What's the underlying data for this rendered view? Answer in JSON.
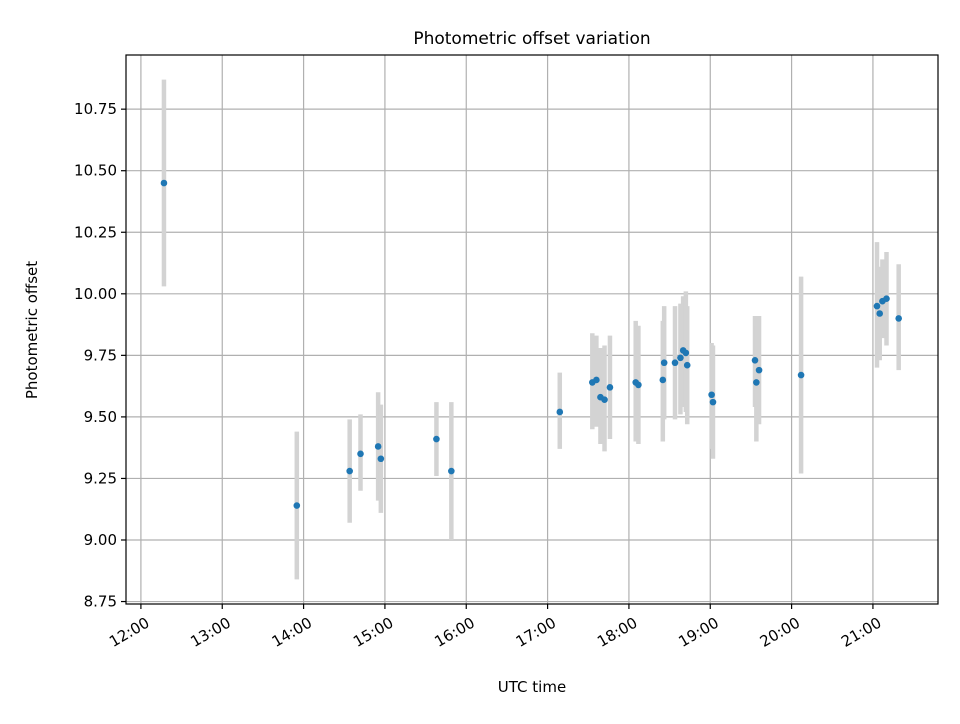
{
  "chart_data": {
    "type": "scatter",
    "title": "Photometric offset variation",
    "xlabel": "UTC time",
    "ylabel": "Photometric offset",
    "xlim": [
      "11:49",
      "21:48"
    ],
    "ylim": [
      8.74,
      10.97
    ],
    "x_ticks": [
      "12:00",
      "13:00",
      "14:00",
      "15:00",
      "16:00",
      "17:00",
      "18:00",
      "19:00",
      "20:00",
      "21:00"
    ],
    "y_ticks": [
      "8.75",
      "9.00",
      "9.25",
      "9.50",
      "9.75",
      "10.00",
      "10.25",
      "10.50",
      "10.75"
    ],
    "grid": true,
    "marker_color": "#1f77b4",
    "errorbar_color": "#d3d3d3",
    "series": [
      {
        "points": [
          {
            "x": "12:17",
            "y": 10.45,
            "yerr_low": 10.03,
            "yerr_high": 10.87
          },
          {
            "x": "13:55",
            "y": 9.14,
            "yerr_low": 8.84,
            "yerr_high": 9.44
          },
          {
            "x": "14:34",
            "y": 9.28,
            "yerr_low": 9.07,
            "yerr_high": 9.49
          },
          {
            "x": "14:42",
            "y": 9.35,
            "yerr_low": 9.2,
            "yerr_high": 9.51
          },
          {
            "x": "14:55",
            "y": 9.38,
            "yerr_low": 9.16,
            "yerr_high": 9.6
          },
          {
            "x": "14:57",
            "y": 9.33,
            "yerr_low": 9.11,
            "yerr_high": 9.55
          },
          {
            "x": "15:38",
            "y": 9.41,
            "yerr_low": 9.26,
            "yerr_high": 9.56
          },
          {
            "x": "15:49",
            "y": 9.28,
            "yerr_low": 9.0,
            "yerr_high": 9.56
          },
          {
            "x": "17:09",
            "y": 9.52,
            "yerr_low": 9.37,
            "yerr_high": 9.68
          },
          {
            "x": "17:33",
            "y": 9.64,
            "yerr_low": 9.45,
            "yerr_high": 9.84
          },
          {
            "x": "17:36",
            "y": 9.65,
            "yerr_low": 9.46,
            "yerr_high": 9.83
          },
          {
            "x": "17:39",
            "y": 9.58,
            "yerr_low": 9.39,
            "yerr_high": 9.78
          },
          {
            "x": "17:42",
            "y": 9.57,
            "yerr_low": 9.36,
            "yerr_high": 9.79
          },
          {
            "x": "17:46",
            "y": 9.62,
            "yerr_low": 9.41,
            "yerr_high": 9.83
          },
          {
            "x": "18:05",
            "y": 9.64,
            "yerr_low": 9.4,
            "yerr_high": 9.89
          },
          {
            "x": "18:07",
            "y": 9.63,
            "yerr_low": 9.39,
            "yerr_high": 9.87
          },
          {
            "x": "18:25",
            "y": 9.65,
            "yerr_low": 9.4,
            "yerr_high": 9.89
          },
          {
            "x": "18:26",
            "y": 9.72,
            "yerr_low": 9.49,
            "yerr_high": 9.95
          },
          {
            "x": "18:34",
            "y": 9.72,
            "yerr_low": 9.49,
            "yerr_high": 9.95
          },
          {
            "x": "18:38",
            "y": 9.74,
            "yerr_low": 9.51,
            "yerr_high": 9.96
          },
          {
            "x": "18:40",
            "y": 9.77,
            "yerr_low": 9.54,
            "yerr_high": 9.99
          },
          {
            "x": "18:42",
            "y": 9.76,
            "yerr_low": 9.52,
            "yerr_high": 10.01
          },
          {
            "x": "18:43",
            "y": 9.71,
            "yerr_low": 9.47,
            "yerr_high": 9.95
          },
          {
            "x": "19:01",
            "y": 9.59,
            "yerr_low": 9.37,
            "yerr_high": 9.8
          },
          {
            "x": "19:02",
            "y": 9.56,
            "yerr_low": 9.33,
            "yerr_high": 9.79
          },
          {
            "x": "19:33",
            "y": 9.73,
            "yerr_low": 9.54,
            "yerr_high": 9.91
          },
          {
            "x": "19:34",
            "y": 9.64,
            "yerr_low": 9.4,
            "yerr_high": 9.87
          },
          {
            "x": "19:36",
            "y": 9.69,
            "yerr_low": 9.47,
            "yerr_high": 9.91
          },
          {
            "x": "20:07",
            "y": 9.67,
            "yerr_low": 9.27,
            "yerr_high": 10.07
          },
          {
            "x": "21:03",
            "y": 9.95,
            "yerr_low": 9.7,
            "yerr_high": 10.21
          },
          {
            "x": "21:05",
            "y": 9.92,
            "yerr_low": 9.73,
            "yerr_high": 10.11
          },
          {
            "x": "21:07",
            "y": 9.97,
            "yerr_low": 9.82,
            "yerr_high": 10.14
          },
          {
            "x": "21:10",
            "y": 9.98,
            "yerr_low": 9.79,
            "yerr_high": 10.17
          },
          {
            "x": "21:19",
            "y": 9.9,
            "yerr_low": 9.69,
            "yerr_high": 10.12
          }
        ]
      }
    ]
  }
}
